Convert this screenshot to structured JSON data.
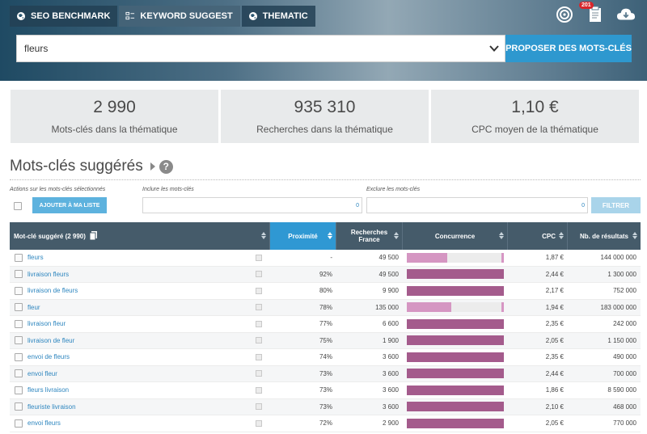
{
  "tabs": [
    {
      "label": "SEO BENCHMARK",
      "icon": "globe-icon"
    },
    {
      "label": "KEYWORD SUGGEST",
      "icon": "list-icon"
    },
    {
      "label": "THEMATIC",
      "icon": "globe-icon"
    }
  ],
  "header": {
    "notification_count": "201"
  },
  "search": {
    "value": "fleurs",
    "submit_label": "PROPOSER DES MOTS-CLÉS"
  },
  "stats": [
    {
      "value": "2 990",
      "label": "Mots-clés dans la thématique"
    },
    {
      "value": "935 310",
      "label": "Recherches dans la thématique"
    },
    {
      "value": "1,10 €",
      "label": "CPC moyen de la thématique"
    }
  ],
  "section": {
    "title": "Mots-clés suggérés",
    "help": "?"
  },
  "filters": {
    "actions_label": "Actions sur les mots-clés sélectionnés",
    "add_button": "AJOUTER À MA LISTE",
    "include_label": "Inclure les mots-clés",
    "include_count": "0",
    "exclude_label": "Exclure les mots-clés",
    "exclude_count": "0",
    "filter_button": "FILTRER"
  },
  "table": {
    "headers": {
      "keyword": "Mot-clé suggéré (2 990)",
      "proximity": "Proximité",
      "searches": "Recherches France",
      "competition": "Concurrence",
      "cpc": "CPC",
      "results": "Nb. de résultats"
    },
    "colors": {
      "high": "#a45b8c",
      "low": "#d596c2"
    },
    "rows": [
      {
        "keyword": "fleurs",
        "proximity": "-",
        "searches": "49 500",
        "competition": 0.42,
        "level": "low",
        "cpc": "1,87 €",
        "results": "144 000 000"
      },
      {
        "keyword": "livraison fleurs",
        "proximity": "92%",
        "searches": "49 500",
        "competition": 1.0,
        "level": "high",
        "cpc": "2,44 €",
        "results": "1 300 000"
      },
      {
        "keyword": "livraison de fleurs",
        "proximity": "80%",
        "searches": "9 900",
        "competition": 1.0,
        "level": "high",
        "cpc": "2,17 €",
        "results": "752 000"
      },
      {
        "keyword": "fleur",
        "proximity": "78%",
        "searches": "135 000",
        "competition": 0.46,
        "level": "low",
        "cpc": "1,94 €",
        "results": "183 000 000"
      },
      {
        "keyword": "livraison fleur",
        "proximity": "77%",
        "searches": "6 600",
        "competition": 1.0,
        "level": "high",
        "cpc": "2,35 €",
        "results": "242 000"
      },
      {
        "keyword": "livraison de fleur",
        "proximity": "75%",
        "searches": "1 900",
        "competition": 1.0,
        "level": "high",
        "cpc": "2,05 €",
        "results": "1 150 000"
      },
      {
        "keyword": "envoi de fleurs",
        "proximity": "74%",
        "searches": "3 600",
        "competition": 1.0,
        "level": "high",
        "cpc": "2,35 €",
        "results": "490 000"
      },
      {
        "keyword": "envoi fleur",
        "proximity": "73%",
        "searches": "3 600",
        "competition": 1.0,
        "level": "high",
        "cpc": "2,44 €",
        "results": "700 000"
      },
      {
        "keyword": "fleurs livraison",
        "proximity": "73%",
        "searches": "3 600",
        "competition": 1.0,
        "level": "high",
        "cpc": "1,86 €",
        "results": "8 590 000"
      },
      {
        "keyword": "fleuriste livraison",
        "proximity": "73%",
        "searches": "3 600",
        "competition": 1.0,
        "level": "high",
        "cpc": "2,10 €",
        "results": "468 000"
      },
      {
        "keyword": "envoi fleurs",
        "proximity": "72%",
        "searches": "2 900",
        "competition": 1.0,
        "level": "high",
        "cpc": "2,05 €",
        "results": "770 000"
      }
    ]
  }
}
